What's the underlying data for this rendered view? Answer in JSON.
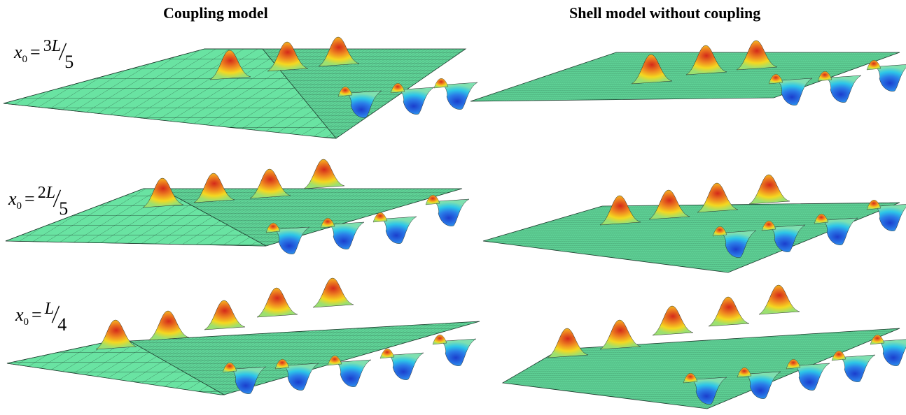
{
  "titles": {
    "left": "Coupling model",
    "right": "Shell model without coupling"
  },
  "rows": [
    {
      "sub": "0",
      "num": "3",
      "var": "L",
      "den": "5"
    },
    {
      "sub": "0",
      "num": "2",
      "var": "L",
      "den": "5"
    },
    {
      "sub": "0",
      "num": "",
      "var": "L",
      "den": "4"
    }
  ],
  "colors": {
    "mesh_fill": "#69e3a2",
    "mesh_fine_fill": "#5fd397",
    "mesh_line": "#1d3a2c",
    "peak": "#d42a1a",
    "peak_mid": "#f4d820",
    "trough": "#1b3ecd",
    "trough_mid": "#2dc6e8"
  }
}
